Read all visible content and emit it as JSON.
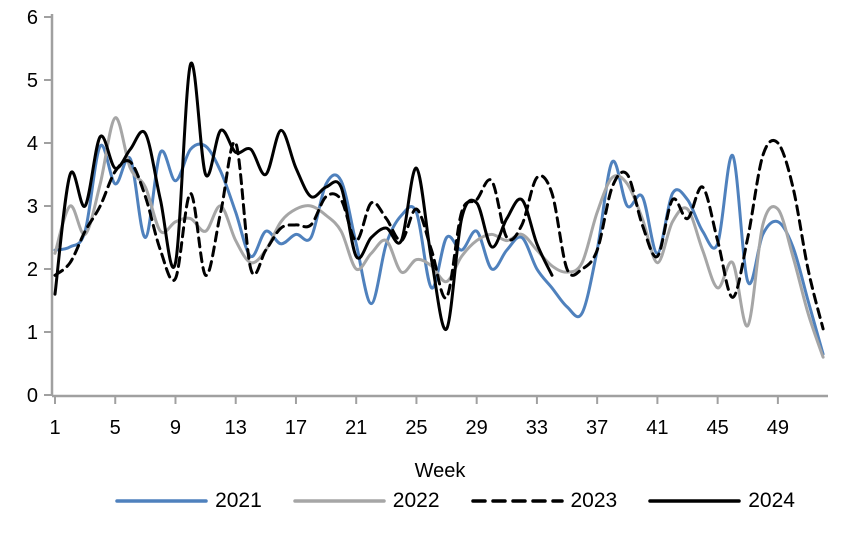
{
  "chart_data": {
    "type": "line",
    "title": "",
    "xlabel": "Week",
    "ylabel": "",
    "ylim": [
      0,
      6
    ],
    "y_ticks": [
      0,
      1,
      2,
      3,
      4,
      5,
      6
    ],
    "x_ticks": [
      1,
      5,
      9,
      13,
      17,
      21,
      25,
      29,
      33,
      37,
      41,
      45,
      49
    ],
    "x_weeks": [
      1,
      2,
      3,
      4,
      5,
      6,
      7,
      8,
      9,
      10,
      11,
      12,
      13,
      14,
      15,
      16,
      17,
      18,
      19,
      20,
      21,
      22,
      23,
      24,
      25,
      26,
      27,
      28,
      29,
      30,
      31,
      32,
      33,
      34,
      35,
      36,
      37,
      38,
      39,
      40,
      41,
      42,
      43,
      44,
      45,
      46,
      47,
      48,
      49,
      50,
      51,
      52
    ],
    "grid": false,
    "legend_position": "bottom",
    "axis_color": "#a0a0a0",
    "text_color": "#000000",
    "smoothing": "spline",
    "series": [
      {
        "name": "2021",
        "color": "#4f81bd",
        "style": "solid",
        "values": [
          2.3,
          2.35,
          2.6,
          3.95,
          3.35,
          3.75,
          2.5,
          3.85,
          3.4,
          3.9,
          3.95,
          3.55,
          2.9,
          2.2,
          2.6,
          2.4,
          2.55,
          2.5,
          3.35,
          3.4,
          2.4,
          1.45,
          2.4,
          2.85,
          2.9,
          1.7,
          2.5,
          2.3,
          2.6,
          2.0,
          2.3,
          2.5,
          2.0,
          1.7,
          1.4,
          1.3,
          2.3,
          3.7,
          3.0,
          3.15,
          2.25,
          3.2,
          3.1,
          2.6,
          2.4,
          3.8,
          1.8,
          2.55,
          2.75,
          2.35,
          1.5,
          0.65
        ]
      },
      {
        "name": "2022",
        "color": "#a6a6a6",
        "style": "solid",
        "values": [
          2.25,
          3.0,
          2.55,
          3.35,
          4.4,
          3.6,
          3.3,
          2.6,
          2.75,
          2.8,
          2.6,
          3.0,
          2.45,
          2.1,
          2.3,
          2.75,
          2.95,
          3.0,
          2.85,
          2.6,
          2.0,
          2.25,
          2.45,
          1.95,
          2.15,
          2.05,
          1.8,
          2.2,
          2.45,
          2.55,
          2.45,
          2.55,
          2.3,
          2.05,
          1.95,
          2.1,
          2.9,
          3.45,
          3.35,
          2.8,
          2.1,
          2.75,
          2.95,
          2.3,
          1.7,
          2.1,
          1.1,
          2.7,
          2.95,
          2.2,
          1.3,
          0.6
        ]
      },
      {
        "name": "2023",
        "color": "#000000",
        "style": "dashed",
        "values": [
          1.9,
          2.1,
          2.6,
          3.0,
          3.55,
          3.7,
          3.15,
          2.3,
          1.85,
          3.2,
          1.9,
          2.9,
          4.0,
          2.0,
          2.3,
          2.65,
          2.7,
          2.7,
          3.15,
          3.1,
          2.45,
          3.05,
          2.8,
          2.45,
          2.95,
          2.3,
          1.55,
          2.9,
          3.1,
          3.4,
          2.5,
          2.7,
          3.45,
          3.2,
          2.0,
          2.0,
          2.3,
          3.3,
          3.5,
          2.7,
          2.2,
          3.1,
          2.8,
          3.3,
          2.45,
          1.55,
          2.5,
          3.8,
          4.0,
          3.3,
          2.0,
          1.05
        ]
      },
      {
        "name": "2024",
        "color": "#000000",
        "style": "solid",
        "values": [
          1.6,
          3.5,
          3.0,
          4.1,
          3.6,
          3.9,
          4.15,
          3.1,
          2.1,
          5.25,
          3.5,
          4.2,
          3.85,
          3.9,
          3.5,
          4.2,
          3.6,
          3.15,
          3.3,
          3.3,
          2.2,
          2.5,
          2.65,
          2.45,
          3.6,
          2.15,
          1.05,
          2.8,
          3.05,
          2.35,
          2.8,
          3.1,
          2.4,
          1.9,
          null,
          null,
          null,
          null,
          null,
          null,
          null,
          null,
          null,
          null,
          null,
          null,
          null,
          null,
          null,
          null,
          null,
          null
        ]
      }
    ]
  }
}
